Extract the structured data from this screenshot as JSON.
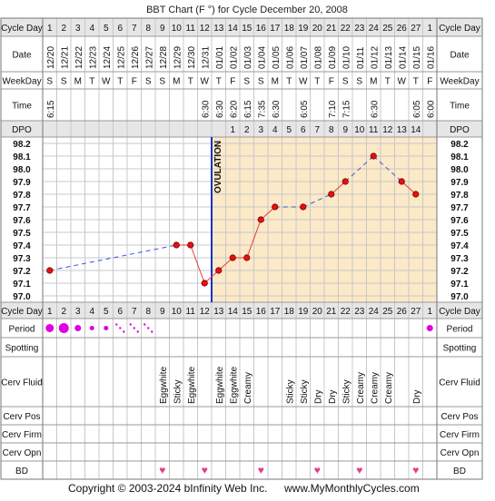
{
  "title": "BBT Chart (F °) for Cycle December 20, 2008",
  "footer": {
    "copyright": "Copyright © 2003-2024 bInfinity Web Inc.",
    "site": "www.MyMonthlyCycles.com"
  },
  "row_labels": {
    "cycle_day": "Cycle Day",
    "date": "Date",
    "weekday": "WeekDay",
    "time": "Time",
    "dpo": "DPO",
    "period": "Period",
    "spotting": "Spotting",
    "cerv_fluid": "Cerv Fluid",
    "cerv_pos": "Cerv Pos",
    "cerv_firm": "Cerv Firm",
    "cerv_opn": "Cerv Opn",
    "bd": "BD"
  },
  "ovulation_label": "OVULATION",
  "colors": {
    "temp_line": "#e83a3a",
    "temp_point": "#e81010",
    "ovulation_line": "#1530c8",
    "luteal_bg": "#fbe9c8",
    "grid": "#c8c8c8",
    "period_mark": "#e000e0",
    "bd_heart": "#e0408a",
    "header_bg": "#e6e6e6"
  },
  "days": {
    "cycle_day": [
      "1",
      "2",
      "3",
      "4",
      "5",
      "6",
      "7",
      "8",
      "9",
      "10",
      "11",
      "12",
      "13",
      "14",
      "15",
      "16",
      "17",
      "18",
      "19",
      "20",
      "21",
      "22",
      "23",
      "24",
      "25",
      "26",
      "27",
      "1"
    ],
    "date": [
      "12/20",
      "12/21",
      "12/22",
      "12/23",
      "12/24",
      "12/25",
      "12/26",
      "12/27",
      "12/28",
      "12/29",
      "12/30",
      "12/31",
      "01/01",
      "01/02",
      "01/03",
      "01/04",
      "01/05",
      "01/06",
      "01/07",
      "01/08",
      "01/09",
      "01/10",
      "01/11",
      "01/12",
      "01/13",
      "01/14",
      "01/15",
      "01/16"
    ],
    "weekday": [
      "S",
      "S",
      "M",
      "T",
      "W",
      "T",
      "F",
      "S",
      "S",
      "M",
      "T",
      "W",
      "T",
      "F",
      "S",
      "S",
      "M",
      "T",
      "W",
      "T",
      "F",
      "S",
      "S",
      "M",
      "T",
      "W",
      "T",
      "F"
    ],
    "time": [
      "6:15",
      "",
      "",
      "",
      "",
      "",
      "",
      "",
      "",
      "",
      "",
      "6:30",
      "6:30",
      "6:20",
      "6:15",
      "7:35",
      "6:30",
      "",
      "6:05",
      "",
      "7:10",
      "7:15",
      "",
      "6:30",
      "",
      "",
      "6:05",
      "6:00"
    ],
    "dpo": [
      "",
      "",
      "",
      "",
      "",
      "",
      "",
      "",
      "",
      "",
      "",
      "",
      "",
      "1",
      "2",
      "3",
      "4",
      "5",
      "6",
      "7",
      "8",
      "9",
      "10",
      "11",
      "12",
      "13",
      "14",
      ""
    ],
    "period": [
      "heavy",
      "heavy",
      "medium",
      "light",
      "light",
      "spotting",
      "spotting",
      "spotting",
      "",
      "",
      "",
      "",
      "",
      "",
      "",
      "",
      "",
      "",
      "",
      "",
      "",
      "",
      "",
      "",
      "",
      "",
      "",
      "medium"
    ],
    "cerv_fluid": [
      "",
      "",
      "",
      "",
      "",
      "",
      "",
      "",
      "Eggwhite",
      "Sticky",
      "Eggwhite",
      "",
      "Eggwhite",
      "Eggwhite",
      "Creamy",
      "",
      "",
      "Sticky",
      "Sticky",
      "Dry",
      "Dry",
      "Sticky",
      "Creamy",
      "Creamy",
      "Creamy",
      "",
      "Dry",
      ""
    ],
    "bd": [
      false,
      false,
      false,
      false,
      false,
      false,
      false,
      false,
      true,
      false,
      false,
      true,
      false,
      false,
      false,
      true,
      false,
      false,
      false,
      true,
      false,
      false,
      true,
      false,
      false,
      false,
      true,
      false
    ]
  },
  "chart_data": {
    "type": "line",
    "title": "BBT Chart (F °) for Cycle December 20, 2008",
    "x_label": "Cycle Day",
    "x": [
      1,
      2,
      3,
      4,
      5,
      6,
      7,
      8,
      9,
      10,
      11,
      12,
      13,
      14,
      15,
      16,
      17,
      18,
      19,
      20,
      21,
      22,
      23,
      24,
      25,
      26,
      27,
      28
    ],
    "y": [
      97.2,
      null,
      null,
      null,
      null,
      null,
      null,
      null,
      null,
      97.4,
      97.4,
      97.1,
      97.2,
      97.3,
      97.3,
      97.6,
      97.7,
      null,
      97.7,
      null,
      97.8,
      97.9,
      null,
      98.1,
      null,
      97.9,
      97.8,
      null
    ],
    "ylim": [
      97.0,
      98.2
    ],
    "y_ticks": [
      "98.2",
      "98.1",
      "98.0",
      "97.9",
      "97.8",
      "97.7",
      "97.6",
      "97.5",
      "97.4",
      "97.3",
      "97.2",
      "97.1",
      "97.0"
    ],
    "ovulation_after_day": 12,
    "coverline": null
  }
}
